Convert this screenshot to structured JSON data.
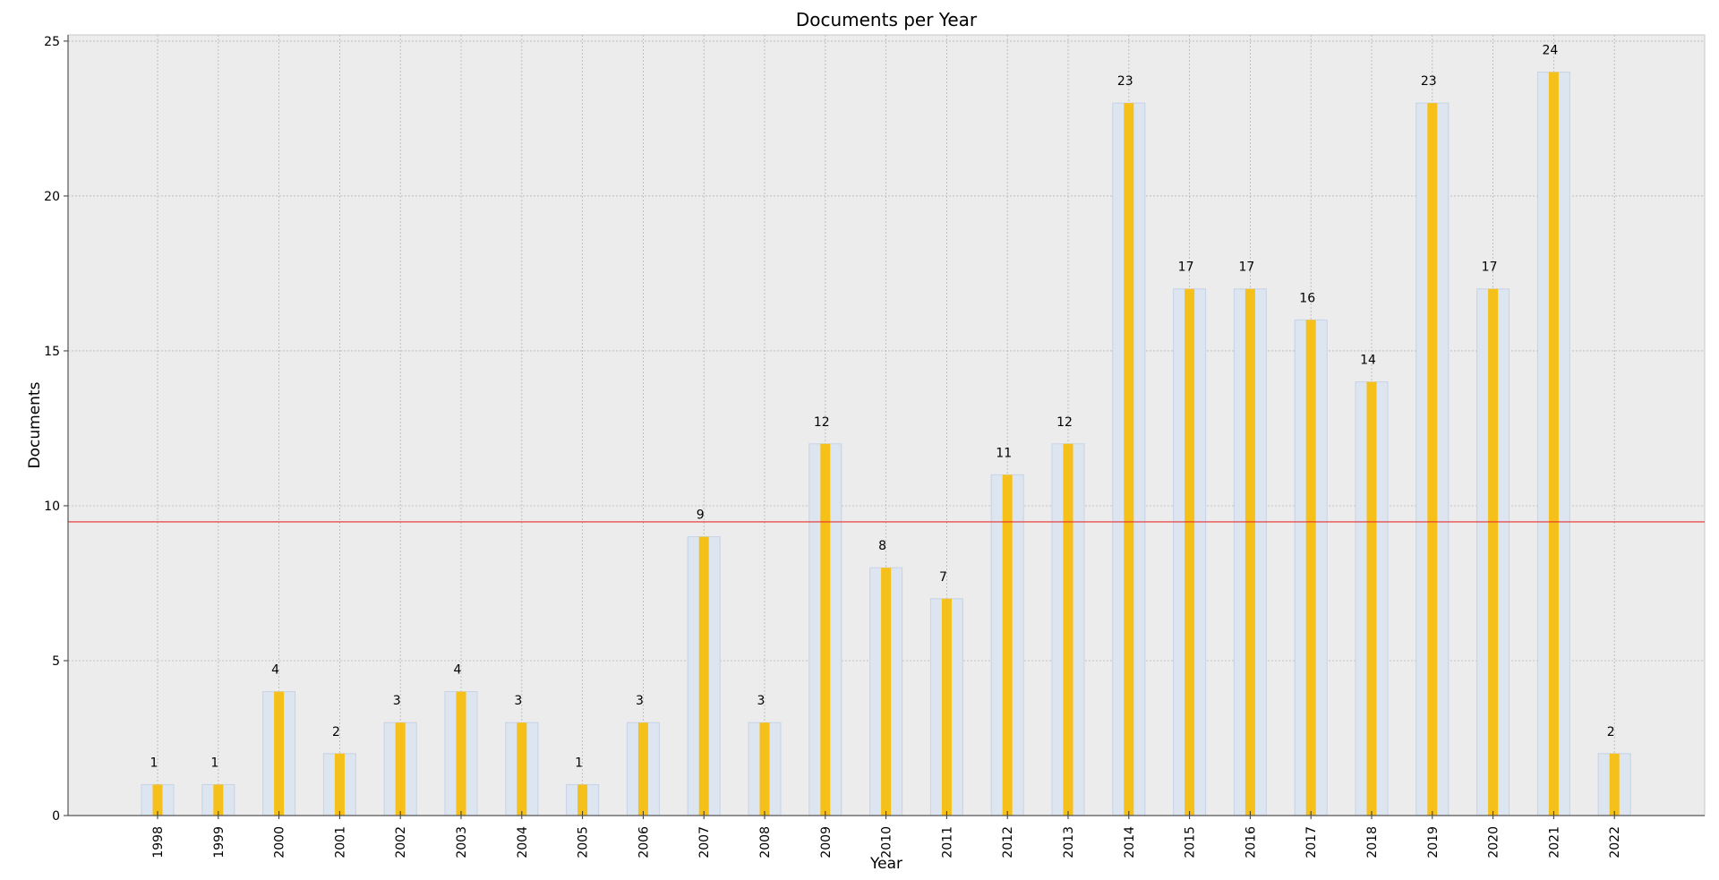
{
  "chart_data": {
    "type": "bar",
    "title": "Documents per Year",
    "xlabel": "Year",
    "ylabel": "Documents",
    "categories": [
      "1998",
      "1999",
      "2000",
      "2001",
      "2002",
      "2003",
      "2004",
      "2005",
      "2006",
      "2007",
      "2008",
      "2009",
      "2010",
      "2011",
      "2012",
      "2013",
      "2014",
      "2015",
      "2016",
      "2017",
      "2018",
      "2019",
      "2020",
      "2021",
      "2022"
    ],
    "values": [
      1,
      1,
      4,
      2,
      3,
      4,
      3,
      1,
      3,
      9,
      3,
      12,
      8,
      7,
      11,
      12,
      23,
      17,
      17,
      16,
      14,
      23,
      17,
      24,
      2
    ],
    "ylim": [
      0,
      25.2
    ],
    "yticks": [
      0,
      5,
      10,
      15,
      20,
      25
    ],
    "reference_line": 9.48,
    "grid": true,
    "colors": {
      "bar": "#f5c01a",
      "bar_shadow": "#dde5f0",
      "bar_shadow_edge": "#c6d3e6",
      "reference_line": "#e8302c",
      "plot_background": "#ececec",
      "grid": "#b5b5b5"
    }
  }
}
